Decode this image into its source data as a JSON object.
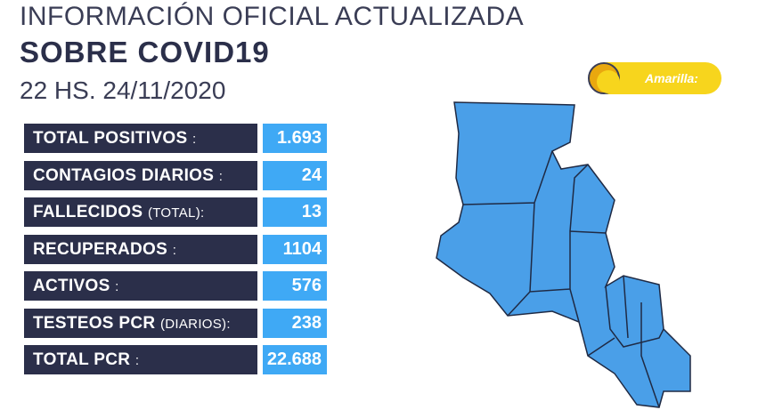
{
  "header": {
    "line1": "INFORMACIÓN OFICIAL ACTUALIZADA",
    "line2": "SOBRE COVID19",
    "line3": "22 HS. 24/11/2020"
  },
  "badge": {
    "label": "Amarilla:"
  },
  "stats": [
    {
      "label": "TOTAL POSITIVOS",
      "suffix": ":",
      "value": "1.693"
    },
    {
      "label": "CONTAGIOS DIARIOS",
      "suffix": ":",
      "value": "24"
    },
    {
      "label": "FALLECIDOS",
      "suffix": "(TOTAL):",
      "value": "13"
    },
    {
      "label": "RECUPERADOS",
      "suffix": ":",
      "value": "1104"
    },
    {
      "label": "ACTIVOS",
      "suffix": ":",
      "value": "576"
    },
    {
      "label": "TESTEOS PCR",
      "suffix": "(DIARIOS):",
      "value": "238"
    },
    {
      "label": "TOTAL PCR",
      "suffix": ":",
      "value": "22.688"
    }
  ]
}
